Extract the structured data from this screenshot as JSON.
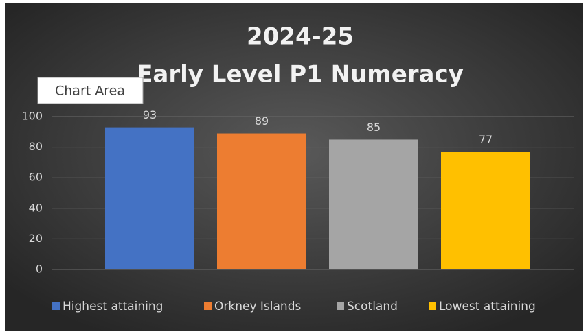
{
  "chart_data": {
    "type": "bar",
    "title": [
      "2024-25",
      "Early Level P1 Numeracy"
    ],
    "series": [
      {
        "name": "Highest attaining",
        "color": "#4472c4",
        "values": [
          93
        ]
      },
      {
        "name": "Orkney Islands",
        "color": "#ed7d31",
        "values": [
          89
        ]
      },
      {
        "name": "Scotland",
        "color": "#a5a5a5",
        "values": [
          85
        ]
      },
      {
        "name": "Lowest attaining",
        "color": "#ffc000",
        "values": [
          77
        ]
      }
    ],
    "ylim": [
      0,
      100
    ],
    "yticks": [
      0,
      20,
      40,
      60,
      80,
      100
    ],
    "grid": true,
    "legend": "bottom",
    "tooltip": "Chart Area"
  }
}
